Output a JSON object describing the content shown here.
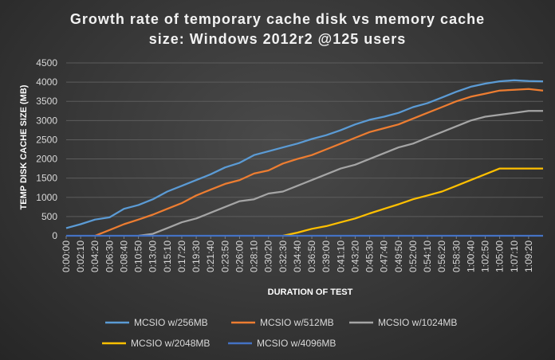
{
  "chart_data": {
    "type": "line",
    "title": "Growth rate of temporary cache disk vs memory cache size: Windows 2012r2 @125 users",
    "title_lines": [
      "Growth rate of temporary cache disk vs memory cache",
      "size: Windows 2012r2 @125 users"
    ],
    "xlabel": "DURATION OF TEST",
    "ylabel": "TEMP DISK CACHE SIZE (MB)",
    "ylim": [
      0,
      4500
    ],
    "yticks": [
      0,
      500,
      1000,
      1500,
      2000,
      2500,
      3000,
      3500,
      4000,
      4500
    ],
    "xlim": [
      "0:00:00",
      "1:11:30"
    ],
    "x_tick_labels": [
      "0:00:00",
      "0:02:10",
      "0:04:20",
      "0:06:30",
      "0:08:40",
      "0:10:50",
      "0:13:00",
      "0:15:10",
      "0:17:20",
      "0:19:30",
      "0:21:40",
      "0:23:50",
      "0:26:00",
      "0:28:10",
      "0:30:20",
      "0:32:30",
      "0:34:40",
      "0:36:50",
      "0:39:00",
      "0:41:10",
      "0:43:20",
      "0:45:30",
      "0:47:40",
      "0:49:50",
      "0:52:00",
      "0:54:10",
      "0:56:20",
      "0:58:30",
      "1:00:40",
      "1:02:50",
      "1:05:00",
      "1:07:10",
      "1:09:20"
    ],
    "grid": true,
    "legend_position": "bottom",
    "series": [
      {
        "name": "MCSIO w/256MB",
        "color": "#5b9bd5",
        "x": [
          "0:00:00",
          "0:02:10",
          "0:04:20",
          "0:06:30",
          "0:08:40",
          "0:10:50",
          "0:13:00",
          "0:15:10",
          "0:17:20",
          "0:19:30",
          "0:21:40",
          "0:23:50",
          "0:26:00",
          "0:28:10",
          "0:30:20",
          "0:32:30",
          "0:34:40",
          "0:36:50",
          "0:39:00",
          "0:41:10",
          "0:43:20",
          "0:45:30",
          "0:47:40",
          "0:49:50",
          "0:52:00",
          "0:54:10",
          "0:56:20",
          "0:58:30",
          "1:00:40",
          "1:02:50",
          "1:05:00",
          "1:07:10",
          "1:09:20",
          "1:11:30"
        ],
        "values": [
          200,
          300,
          420,
          480,
          700,
          800,
          950,
          1150,
          1300,
          1450,
          1600,
          1780,
          1900,
          2100,
          2200,
          2300,
          2400,
          2520,
          2620,
          2750,
          2900,
          3020,
          3100,
          3200,
          3350,
          3450,
          3600,
          3750,
          3880,
          3960,
          4020,
          4050,
          4030,
          4020
        ]
      },
      {
        "name": "MCSIO w/512MB",
        "color": "#ed7d31",
        "x": [
          "0:04:20",
          "0:06:30",
          "0:08:40",
          "0:10:50",
          "0:13:00",
          "0:15:10",
          "0:17:20",
          "0:19:30",
          "0:21:40",
          "0:23:50",
          "0:26:00",
          "0:28:10",
          "0:30:20",
          "0:32:30",
          "0:34:40",
          "0:36:50",
          "0:39:00",
          "0:41:10",
          "0:43:20",
          "0:45:30",
          "0:47:40",
          "0:49:50",
          "0:52:00",
          "0:54:10",
          "0:56:20",
          "0:58:30",
          "1:00:40",
          "1:02:50",
          "1:05:00",
          "1:07:10",
          "1:09:20",
          "1:11:30"
        ],
        "values": [
          0,
          150,
          300,
          420,
          550,
          700,
          850,
          1050,
          1200,
          1350,
          1450,
          1620,
          1700,
          1880,
          2000,
          2100,
          2250,
          2400,
          2550,
          2700,
          2800,
          2900,
          3050,
          3200,
          3350,
          3500,
          3620,
          3700,
          3780,
          3800,
          3820,
          3780
        ]
      },
      {
        "name": "MCSIO w/1024MB",
        "color": "#a5a5a5",
        "x": [
          "0:10:50",
          "0:13:00",
          "0:15:10",
          "0:17:20",
          "0:19:30",
          "0:21:40",
          "0:23:50",
          "0:26:00",
          "0:28:10",
          "0:30:20",
          "0:32:30",
          "0:34:40",
          "0:36:50",
          "0:39:00",
          "0:41:10",
          "0:43:20",
          "0:45:30",
          "0:47:40",
          "0:49:50",
          "0:52:00",
          "0:54:10",
          "0:56:20",
          "0:58:30",
          "1:00:40",
          "1:02:50",
          "1:05:00",
          "1:07:10",
          "1:09:20",
          "1:11:30"
        ],
        "values": [
          0,
          50,
          200,
          350,
          450,
          600,
          750,
          900,
          950,
          1100,
          1150,
          1300,
          1450,
          1600,
          1750,
          1850,
          2000,
          2150,
          2300,
          2400,
          2550,
          2700,
          2850,
          3000,
          3100,
          3150,
          3200,
          3250,
          3250
        ]
      },
      {
        "name": "MCSIO w/2048MB",
        "color": "#ffc000",
        "x": [
          "0:32:30",
          "0:34:40",
          "0:36:50",
          "0:39:00",
          "0:41:10",
          "0:43:20",
          "0:45:30",
          "0:47:40",
          "0:49:50",
          "0:52:00",
          "0:54:10",
          "0:56:20",
          "0:58:30",
          "1:00:40",
          "1:02:50",
          "1:05:00",
          "1:07:10",
          "1:09:20",
          "1:11:30"
        ],
        "values": [
          0,
          80,
          180,
          250,
          350,
          450,
          580,
          700,
          820,
          950,
          1050,
          1150,
          1300,
          1450,
          1600,
          1750,
          1750,
          1750,
          1750
        ]
      },
      {
        "name": "MCSIO w/4096MB",
        "color": "#4472c4",
        "x": [
          "0:00:00",
          "1:11:30"
        ],
        "values": [
          0,
          0
        ]
      }
    ]
  }
}
